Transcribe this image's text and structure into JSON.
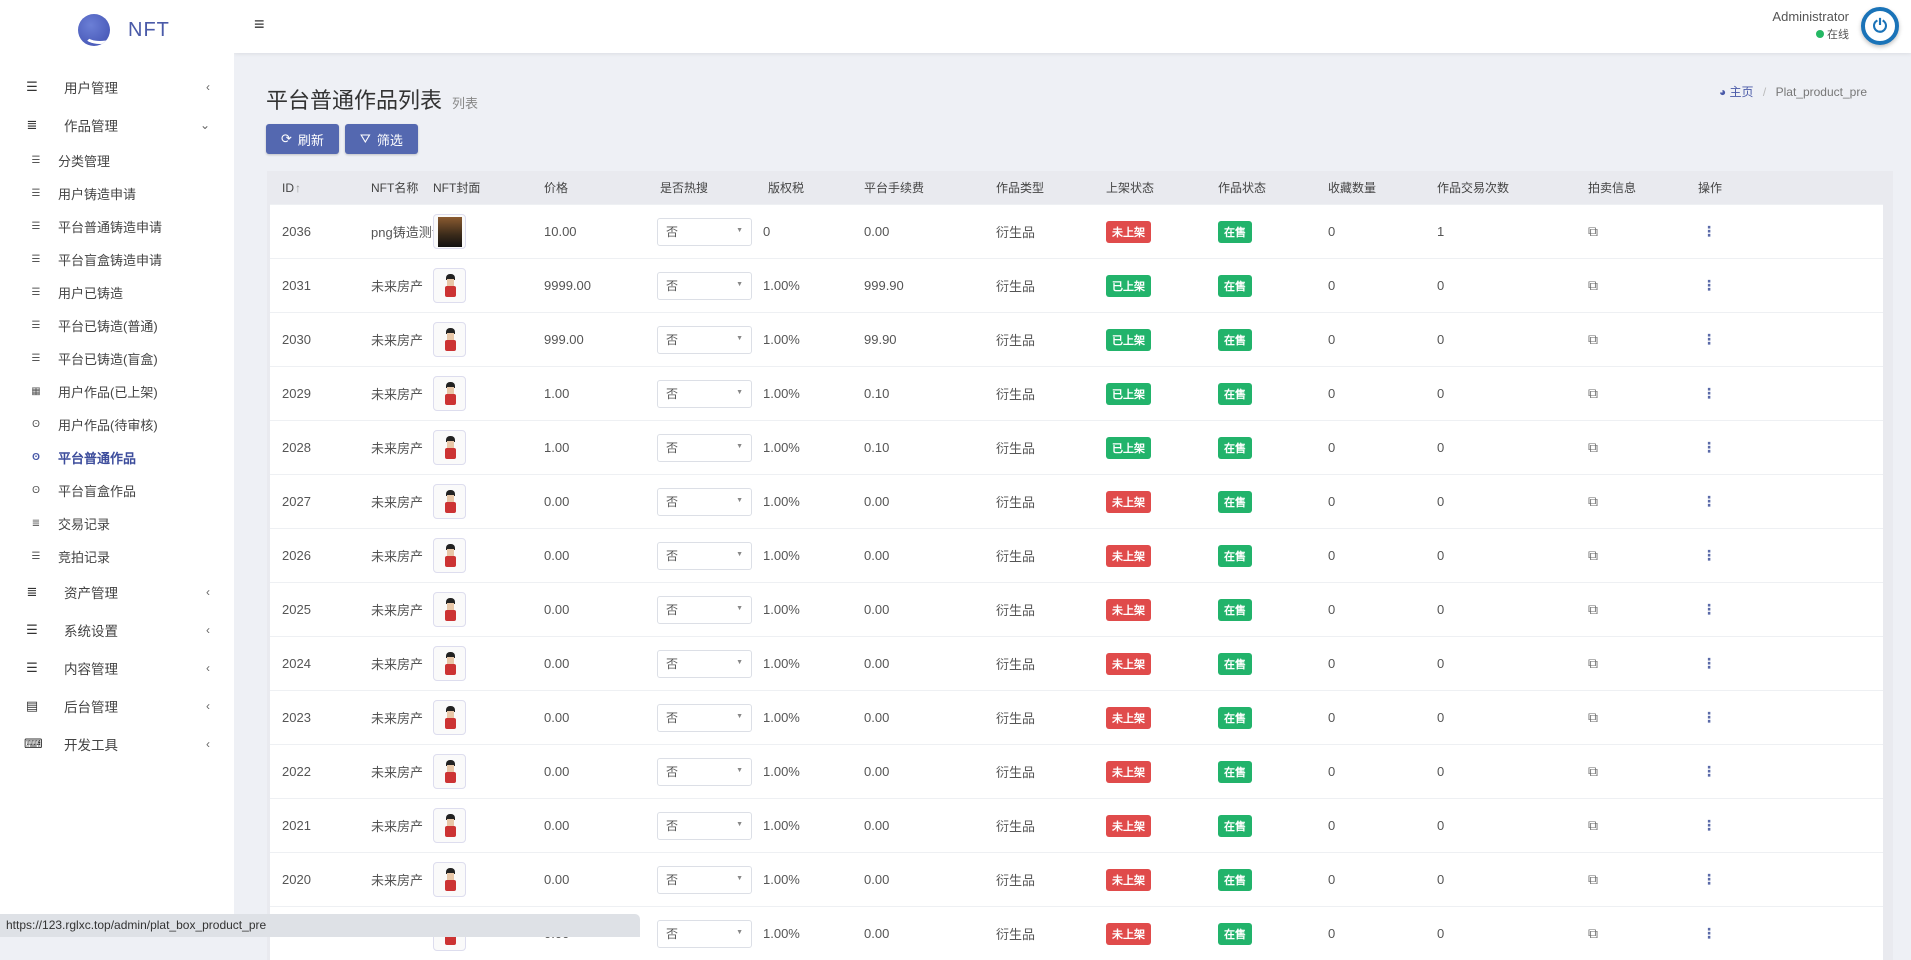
{
  "app": {
    "logo_text": "NFT"
  },
  "sidebar": {
    "top_before": [
      {
        "label": "用户管理",
        "icon": "bars-icon"
      },
      {
        "label": "作品管理",
        "icon": "list-icon",
        "expanded": true
      }
    ],
    "sub": [
      {
        "label": "分类管理",
        "icon": "align-left-icon"
      },
      {
        "label": "用户铸造申请",
        "icon": "align-left-icon"
      },
      {
        "label": "平台普通铸造申请",
        "icon": "align-left-icon"
      },
      {
        "label": "平台盲盒铸造申请",
        "icon": "align-left-icon"
      },
      {
        "label": "用户已铸造",
        "icon": "align-left-icon"
      },
      {
        "label": "平台已铸造(普通)",
        "icon": "align-left-icon"
      },
      {
        "label": "平台已铸造(盲盒)",
        "icon": "align-left-icon"
      },
      {
        "label": "用户作品(已上架)",
        "icon": "th-icon"
      },
      {
        "label": "用户作品(待审核)",
        "icon": "fingerprint-icon"
      },
      {
        "label": "平台普通作品",
        "icon": "fingerprint-icon",
        "active": true
      },
      {
        "label": "平台盲盒作品",
        "icon": "fingerprint-icon"
      },
      {
        "label": "交易记录",
        "icon": "list-icon"
      },
      {
        "label": "竞拍记录",
        "icon": "align-left-icon"
      }
    ],
    "top_after": [
      {
        "label": "资产管理",
        "icon": "list-icon"
      },
      {
        "label": "系统设置",
        "icon": "bars-icon"
      },
      {
        "label": "内容管理",
        "icon": "bars-icon"
      },
      {
        "label": "后台管理",
        "icon": "server-icon"
      },
      {
        "label": "开发工具",
        "icon": "keyboard-icon"
      }
    ]
  },
  "header": {
    "user": "Administrator",
    "status": "在线",
    "status_color": "#25b864"
  },
  "page": {
    "title": "平台普通作品列表",
    "subtitle": "列表",
    "breadcrumb_home": "主页",
    "breadcrumb_current": "Plat_product_pre",
    "refresh": "刷新",
    "filter": "筛选",
    "accent": "#5468b0"
  },
  "table": {
    "columns": [
      "ID",
      "NFT名称",
      "NFT封面",
      "价格",
      "是否热搜",
      "版权税",
      "平台手续费",
      "作品类型",
      "上架状态",
      "作品状态",
      "收藏数量",
      "作品交易次数",
      "拍卖信息",
      "操作"
    ],
    "rows": [
      {
        "id": "2036",
        "name": "png铸造测试",
        "cover": "dark",
        "price": "10.00",
        "hot": "否",
        "royalty": "0",
        "fee": "0.00",
        "type": "衍生品",
        "listed": "未上架",
        "state": "在售",
        "fav": "0",
        "trades": "1"
      },
      {
        "id": "2031",
        "name": "未来房产",
        "cover": "figure",
        "price": "9999.00",
        "hot": "否",
        "royalty": "1.00%",
        "fee": "999.90",
        "type": "衍生品",
        "listed": "已上架",
        "state": "在售",
        "fav": "0",
        "trades": "0"
      },
      {
        "id": "2030",
        "name": "未来房产",
        "cover": "figure",
        "price": "999.00",
        "hot": "否",
        "royalty": "1.00%",
        "fee": "99.90",
        "type": "衍生品",
        "listed": "已上架",
        "state": "在售",
        "fav": "0",
        "trades": "0"
      },
      {
        "id": "2029",
        "name": "未来房产",
        "cover": "figure",
        "price": "1.00",
        "hot": "否",
        "royalty": "1.00%",
        "fee": "0.10",
        "type": "衍生品",
        "listed": "已上架",
        "state": "在售",
        "fav": "0",
        "trades": "0"
      },
      {
        "id": "2028",
        "name": "未来房产",
        "cover": "figure",
        "price": "1.00",
        "hot": "否",
        "royalty": "1.00%",
        "fee": "0.10",
        "type": "衍生品",
        "listed": "已上架",
        "state": "在售",
        "fav": "0",
        "trades": "0"
      },
      {
        "id": "2027",
        "name": "未来房产",
        "cover": "figure",
        "price": "0.00",
        "hot": "否",
        "royalty": "1.00%",
        "fee": "0.00",
        "type": "衍生品",
        "listed": "未上架",
        "state": "在售",
        "fav": "0",
        "trades": "0"
      },
      {
        "id": "2026",
        "name": "未来房产",
        "cover": "figure",
        "price": "0.00",
        "hot": "否",
        "royalty": "1.00%",
        "fee": "0.00",
        "type": "衍生品",
        "listed": "未上架",
        "state": "在售",
        "fav": "0",
        "trades": "0"
      },
      {
        "id": "2025",
        "name": "未来房产",
        "cover": "figure",
        "price": "0.00",
        "hot": "否",
        "royalty": "1.00%",
        "fee": "0.00",
        "type": "衍生品",
        "listed": "未上架",
        "state": "在售",
        "fav": "0",
        "trades": "0"
      },
      {
        "id": "2024",
        "name": "未来房产",
        "cover": "figure",
        "price": "0.00",
        "hot": "否",
        "royalty": "1.00%",
        "fee": "0.00",
        "type": "衍生品",
        "listed": "未上架",
        "state": "在售",
        "fav": "0",
        "trades": "0"
      },
      {
        "id": "2023",
        "name": "未来房产",
        "cover": "figure",
        "price": "0.00",
        "hot": "否",
        "royalty": "1.00%",
        "fee": "0.00",
        "type": "衍生品",
        "listed": "未上架",
        "state": "在售",
        "fav": "0",
        "trades": "0"
      },
      {
        "id": "2022",
        "name": "未来房产",
        "cover": "figure",
        "price": "0.00",
        "hot": "否",
        "royalty": "1.00%",
        "fee": "0.00",
        "type": "衍生品",
        "listed": "未上架",
        "state": "在售",
        "fav": "0",
        "trades": "0"
      },
      {
        "id": "2021",
        "name": "未来房产",
        "cover": "figure",
        "price": "0.00",
        "hot": "否",
        "royalty": "1.00%",
        "fee": "0.00",
        "type": "衍生品",
        "listed": "未上架",
        "state": "在售",
        "fav": "0",
        "trades": "0"
      },
      {
        "id": "2020",
        "name": "未来房产",
        "cover": "figure",
        "price": "0.00",
        "hot": "否",
        "royalty": "1.00%",
        "fee": "0.00",
        "type": "衍生品",
        "listed": "未上架",
        "state": "在售",
        "fav": "0",
        "trades": "0"
      },
      {
        "id": "",
        "name": "",
        "cover": "figure",
        "price": "0.00",
        "hot": "否",
        "royalty": "1.00%",
        "fee": "0.00",
        "type": "衍生品",
        "listed": "未上架",
        "state": "在售",
        "fav": "0",
        "trades": "0"
      }
    ]
  },
  "status_bar": {
    "url": "https://123.rglxc.top/admin/plat_box_product_pre"
  }
}
